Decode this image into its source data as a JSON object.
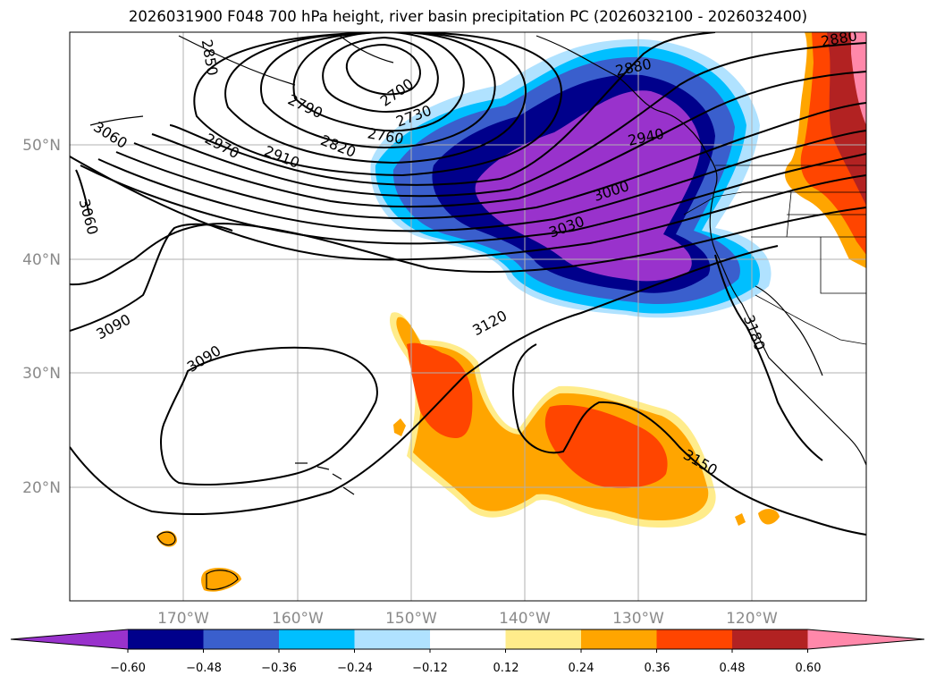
{
  "title": "2026031900 F048 700 hPa height, river basin precipitation PC (2026032100 - 2026032400)",
  "longitude_labels": [
    "170°W",
    "160°W",
    "150°W",
    "140°W",
    "130°W",
    "120°W"
  ],
  "latitude_labels": [
    "50°N",
    "40°N",
    "30°N",
    "20°N"
  ],
  "height_contour_labels": [
    "2700",
    "2730",
    "2760",
    "2790",
    "2820",
    "2850",
    "2880",
    "2880",
    "2910",
    "2940",
    "2970",
    "3000",
    "3030",
    "3060",
    "3060",
    "3090",
    "3090",
    "3120",
    "3150",
    "3180"
  ],
  "colorbar": {
    "tick_labels": [
      "−0.60",
      "−0.48",
      "−0.36",
      "−0.24",
      "−0.12",
      "0.12",
      "0.24",
      "0.36",
      "0.48",
      "0.60"
    ],
    "colors": [
      "#9932cc",
      "#00008b",
      "#3a5fcd",
      "#00bfff",
      "#b0e2ff",
      "#ffffff",
      "#ffec8b",
      "#ffa500",
      "#ff4500",
      "#b22222",
      "#ff88aa"
    ]
  },
  "colors": {
    "frame": "#000000",
    "gridline": "#b0b0b0",
    "axis_label": "#8a8a8a"
  }
}
